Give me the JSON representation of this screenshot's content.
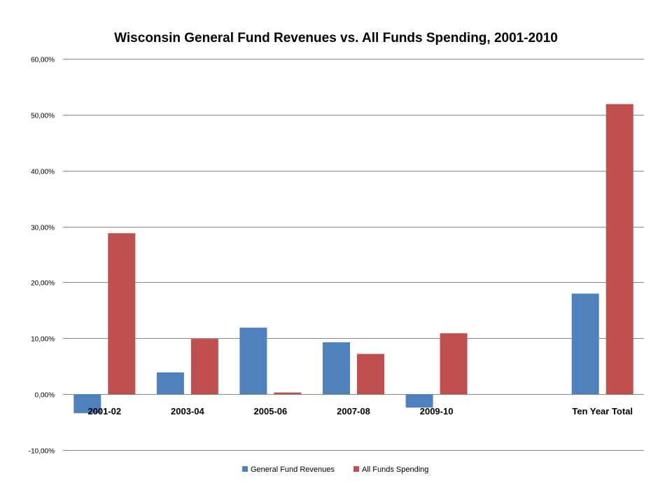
{
  "chart_data": {
    "type": "bar",
    "title": "Wisconsin General Fund Revenues vs. All Funds Spending, 2001-2010",
    "xlabel": "",
    "ylabel": "",
    "categories": [
      "2001-02",
      "2003-04",
      "2005-06",
      "2007-08",
      "2009-10",
      "",
      "Ten Year Total"
    ],
    "series": [
      {
        "name": "General Fund Revenues",
        "color": "#4F81BD",
        "values": [
          -3.4,
          3.9,
          11.9,
          9.3,
          -2.4,
          null,
          18.0
        ]
      },
      {
        "name": "All Funds Spending",
        "color": "#C0504D",
        "values": [
          28.8,
          9.9,
          0.3,
          7.2,
          10.9,
          null,
          51.9
        ]
      }
    ],
    "ylim": [
      -10,
      60
    ],
    "yticks": [
      "-10,00%",
      "0,00%",
      "10,00%",
      "20,00%",
      "30,00%",
      "40,00%",
      "50,00%",
      "60,00%"
    ],
    "grid": true,
    "legend_position": "bottom"
  }
}
